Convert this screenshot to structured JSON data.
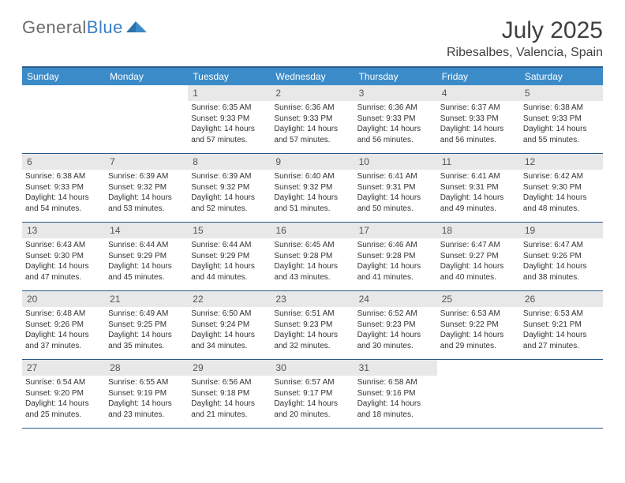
{
  "brand": {
    "name_plain": "General",
    "name_accent": "Blue"
  },
  "title": "July 2025",
  "location": "Ribesalbes, Valencia, Spain",
  "colors": {
    "header_bar": "#3b8bc9",
    "border": "#2a5a8a",
    "daynum_bg": "#e8e8e8",
    "text": "#333333",
    "muted": "#6b6b6b"
  },
  "weekdays": [
    "Sunday",
    "Monday",
    "Tuesday",
    "Wednesday",
    "Thursday",
    "Friday",
    "Saturday"
  ],
  "weeks": [
    [
      null,
      null,
      {
        "n": "1",
        "sr": "6:35 AM",
        "ss": "9:33 PM",
        "dl": "14 hours and 57 minutes."
      },
      {
        "n": "2",
        "sr": "6:36 AM",
        "ss": "9:33 PM",
        "dl": "14 hours and 57 minutes."
      },
      {
        "n": "3",
        "sr": "6:36 AM",
        "ss": "9:33 PM",
        "dl": "14 hours and 56 minutes."
      },
      {
        "n": "4",
        "sr": "6:37 AM",
        "ss": "9:33 PM",
        "dl": "14 hours and 56 minutes."
      },
      {
        "n": "5",
        "sr": "6:38 AM",
        "ss": "9:33 PM",
        "dl": "14 hours and 55 minutes."
      }
    ],
    [
      {
        "n": "6",
        "sr": "6:38 AM",
        "ss": "9:33 PM",
        "dl": "14 hours and 54 minutes."
      },
      {
        "n": "7",
        "sr": "6:39 AM",
        "ss": "9:32 PM",
        "dl": "14 hours and 53 minutes."
      },
      {
        "n": "8",
        "sr": "6:39 AM",
        "ss": "9:32 PM",
        "dl": "14 hours and 52 minutes."
      },
      {
        "n": "9",
        "sr": "6:40 AM",
        "ss": "9:32 PM",
        "dl": "14 hours and 51 minutes."
      },
      {
        "n": "10",
        "sr": "6:41 AM",
        "ss": "9:31 PM",
        "dl": "14 hours and 50 minutes."
      },
      {
        "n": "11",
        "sr": "6:41 AM",
        "ss": "9:31 PM",
        "dl": "14 hours and 49 minutes."
      },
      {
        "n": "12",
        "sr": "6:42 AM",
        "ss": "9:30 PM",
        "dl": "14 hours and 48 minutes."
      }
    ],
    [
      {
        "n": "13",
        "sr": "6:43 AM",
        "ss": "9:30 PM",
        "dl": "14 hours and 47 minutes."
      },
      {
        "n": "14",
        "sr": "6:44 AM",
        "ss": "9:29 PM",
        "dl": "14 hours and 45 minutes."
      },
      {
        "n": "15",
        "sr": "6:44 AM",
        "ss": "9:29 PM",
        "dl": "14 hours and 44 minutes."
      },
      {
        "n": "16",
        "sr": "6:45 AM",
        "ss": "9:28 PM",
        "dl": "14 hours and 43 minutes."
      },
      {
        "n": "17",
        "sr": "6:46 AM",
        "ss": "9:28 PM",
        "dl": "14 hours and 41 minutes."
      },
      {
        "n": "18",
        "sr": "6:47 AM",
        "ss": "9:27 PM",
        "dl": "14 hours and 40 minutes."
      },
      {
        "n": "19",
        "sr": "6:47 AM",
        "ss": "9:26 PM",
        "dl": "14 hours and 38 minutes."
      }
    ],
    [
      {
        "n": "20",
        "sr": "6:48 AM",
        "ss": "9:26 PM",
        "dl": "14 hours and 37 minutes."
      },
      {
        "n": "21",
        "sr": "6:49 AM",
        "ss": "9:25 PM",
        "dl": "14 hours and 35 minutes."
      },
      {
        "n": "22",
        "sr": "6:50 AM",
        "ss": "9:24 PM",
        "dl": "14 hours and 34 minutes."
      },
      {
        "n": "23",
        "sr": "6:51 AM",
        "ss": "9:23 PM",
        "dl": "14 hours and 32 minutes."
      },
      {
        "n": "24",
        "sr": "6:52 AM",
        "ss": "9:23 PM",
        "dl": "14 hours and 30 minutes."
      },
      {
        "n": "25",
        "sr": "6:53 AM",
        "ss": "9:22 PM",
        "dl": "14 hours and 29 minutes."
      },
      {
        "n": "26",
        "sr": "6:53 AM",
        "ss": "9:21 PM",
        "dl": "14 hours and 27 minutes."
      }
    ],
    [
      {
        "n": "27",
        "sr": "6:54 AM",
        "ss": "9:20 PM",
        "dl": "14 hours and 25 minutes."
      },
      {
        "n": "28",
        "sr": "6:55 AM",
        "ss": "9:19 PM",
        "dl": "14 hours and 23 minutes."
      },
      {
        "n": "29",
        "sr": "6:56 AM",
        "ss": "9:18 PM",
        "dl": "14 hours and 21 minutes."
      },
      {
        "n": "30",
        "sr": "6:57 AM",
        "ss": "9:17 PM",
        "dl": "14 hours and 20 minutes."
      },
      {
        "n": "31",
        "sr": "6:58 AM",
        "ss": "9:16 PM",
        "dl": "14 hours and 18 minutes."
      },
      null,
      null
    ]
  ],
  "labels": {
    "sunrise": "Sunrise:",
    "sunset": "Sunset:",
    "daylight": "Daylight:"
  }
}
